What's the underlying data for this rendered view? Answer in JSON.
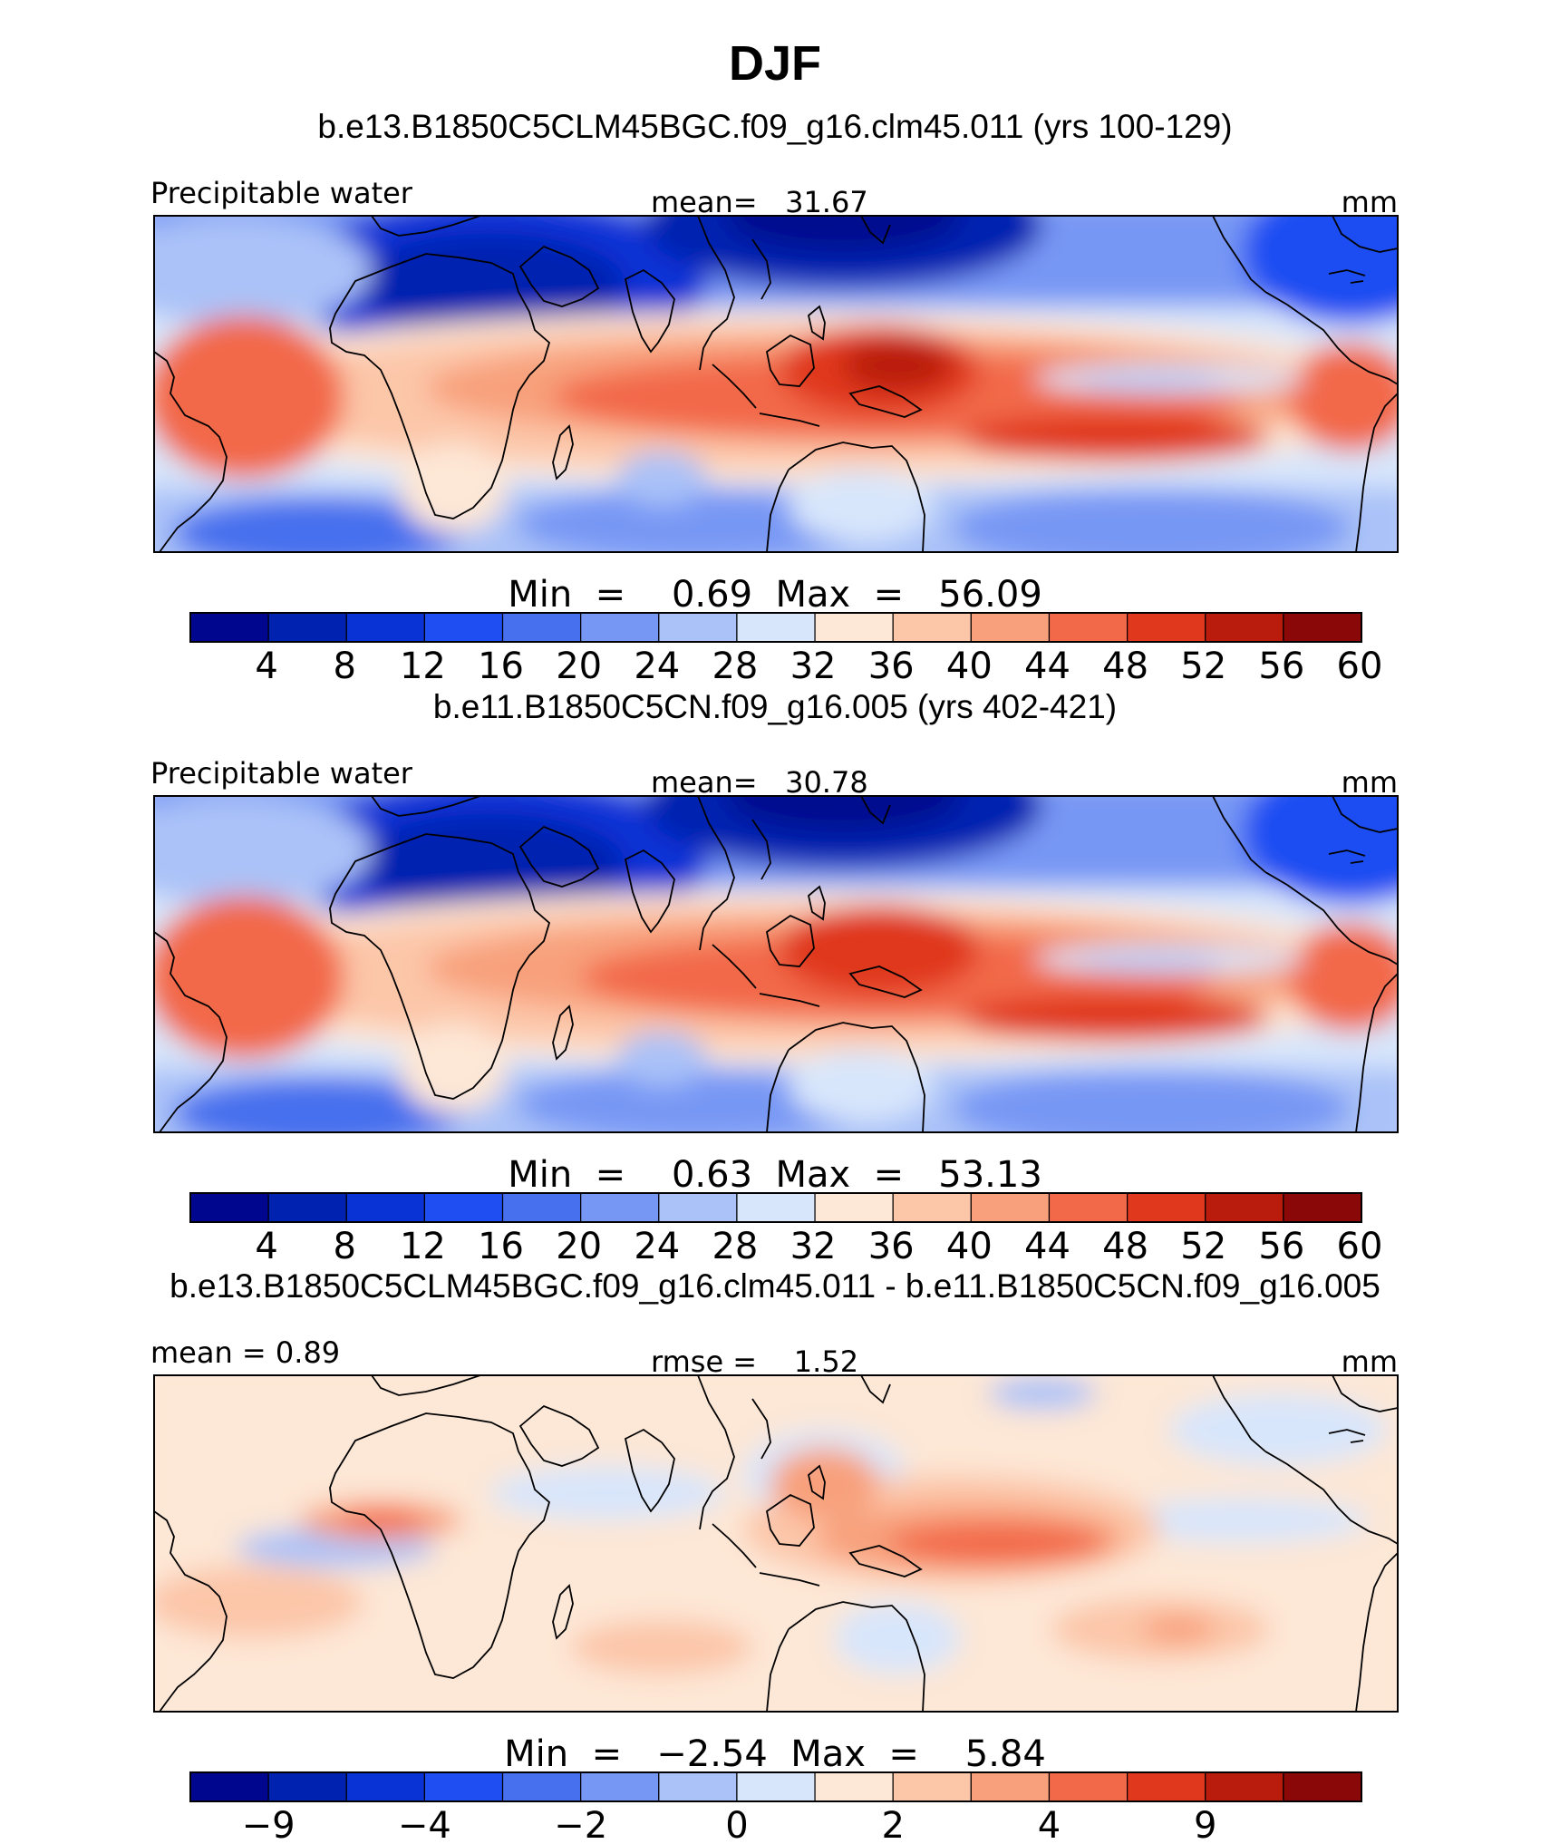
{
  "page_title": "DJF",
  "chart_data": [
    {
      "type": "heatmap",
      "title": "b.e13.B1850C5CLM45BGC.f09_g16.clm45.011 (yrs 100-129)",
      "left_label": "Precipitable water",
      "center_label": "mean=   31.67",
      "right_label": "mm",
      "stats": "Min  =    0.69  Max  =   56.09",
      "colorbar_labels": [
        "4",
        "8",
        "12",
        "16",
        "20",
        "24",
        "28",
        "32",
        "36",
        "40",
        "44",
        "48",
        "52",
        "56",
        "60"
      ],
      "colorbar_levels": [
        4,
        8,
        12,
        16,
        20,
        24,
        28,
        32,
        36,
        40,
        44,
        48,
        52,
        56,
        60
      ],
      "colors": [
        "#00078e",
        "#0022b0",
        "#0a33d6",
        "#1f4ef2",
        "#4670ee",
        "#7797f4",
        "#aac2f8",
        "#d8e6fb",
        "#fde7d6",
        "#fcc6a9",
        "#f8a07c",
        "#f2694a",
        "#e0381c",
        "#b91c0c",
        "#8a0808"
      ],
      "mean": 31.67,
      "min": 0.69,
      "max": 56.09
    },
    {
      "type": "heatmap",
      "title": "b.e11.B1850C5CN.f09_g16.005 (yrs 402-421)",
      "left_label": "Precipitable water",
      "center_label": "mean=   30.78",
      "right_label": "mm",
      "stats": "Min  =    0.63  Max  =   53.13",
      "colorbar_labels": [
        "4",
        "8",
        "12",
        "16",
        "20",
        "24",
        "28",
        "32",
        "36",
        "40",
        "44",
        "48",
        "52",
        "56",
        "60"
      ],
      "colorbar_levels": [
        4,
        8,
        12,
        16,
        20,
        24,
        28,
        32,
        36,
        40,
        44,
        48,
        52,
        56,
        60
      ],
      "colors": [
        "#00078e",
        "#0022b0",
        "#0a33d6",
        "#1f4ef2",
        "#4670ee",
        "#7797f4",
        "#aac2f8",
        "#d8e6fb",
        "#fde7d6",
        "#fcc6a9",
        "#f8a07c",
        "#f2694a",
        "#e0381c",
        "#b91c0c",
        "#8a0808"
      ],
      "mean": 30.78,
      "min": 0.63,
      "max": 53.13
    },
    {
      "type": "heatmap",
      "title": "b.e13.B1850C5CLM45BGC.f09_g16.clm45.011 - b.e11.B1850C5CN.f09_g16.005",
      "left_label": "mean =    0.89",
      "center_label": "rmse =    1.52",
      "right_label": "mm",
      "stats": "Min  =   −2.54  Max  =    5.84",
      "colorbar_labels": [
        "−9",
        "−4",
        "−2",
        "0",
        "2",
        "4",
        "9"
      ],
      "colorbar_levels": [
        -9,
        -4,
        -2,
        0,
        2,
        4,
        9
      ],
      "colors": [
        "#00078e",
        "#0022b0",
        "#0a33d6",
        "#1f4ef2",
        "#4670ee",
        "#7797f4",
        "#aac2f8",
        "#d8e6fb",
        "#fde7d6",
        "#fcc6a9",
        "#f8a07c",
        "#f2694a",
        "#e0381c",
        "#b91c0c",
        "#8a0808"
      ],
      "mean": 0.89,
      "rmse": 1.52,
      "min": -2.54,
      "max": 5.84
    }
  ]
}
